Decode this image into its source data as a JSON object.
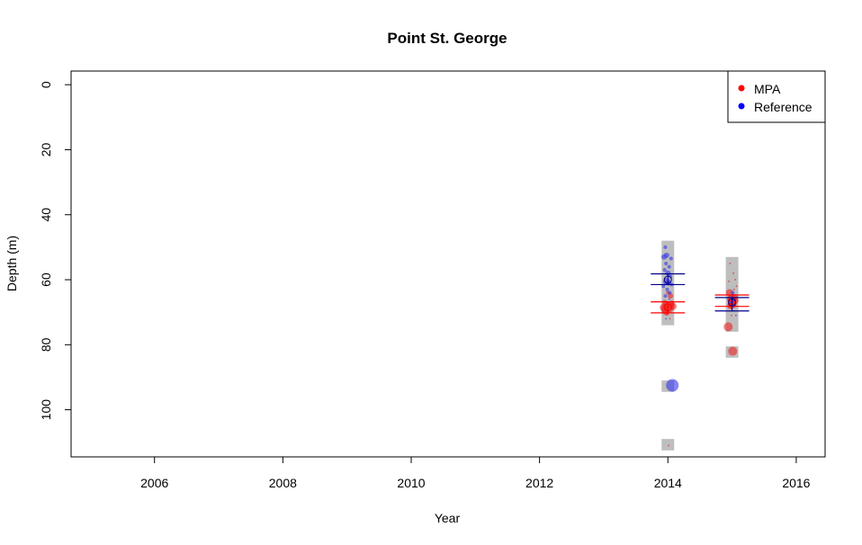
{
  "chart_data": {
    "type": "scatter",
    "title": "Point St. George",
    "xlabel": "Year",
    "ylabel": "Depth (m)",
    "xlim": [
      2004.7,
      2016.45
    ],
    "ylim": [
      114.5,
      -4.2
    ],
    "y_inverted": true,
    "x_ticks": [
      2006,
      2008,
      2010,
      2012,
      2014,
      2016
    ],
    "y_ticks": [
      0,
      20,
      40,
      60,
      80,
      100
    ],
    "grid": false,
    "legend": {
      "placement": "top-right",
      "entries": [
        {
          "label": "MPA",
          "color": "#ff0000"
        },
        {
          "label": "Reference",
          "color": "#0000ff"
        }
      ]
    },
    "colors": {
      "mpa_point": "#ee2222",
      "reference_point": "#3333ee",
      "range_bar": "#bebebe"
    },
    "range_bars": [
      {
        "year": 2014,
        "from": 48,
        "to": 74
      },
      {
        "year": 2014,
        "from": 91,
        "to": 94.5
      },
      {
        "year": 2014,
        "from": 109,
        "to": 112.5
      },
      {
        "year": 2015,
        "from": 53,
        "to": 76
      },
      {
        "year": 2015,
        "from": 80.5,
        "to": 84
      }
    ],
    "summary": [
      {
        "series": "MPA",
        "year": 2014,
        "mean": 68.5,
        "lower": 66.8,
        "upper": 70.2
      },
      {
        "series": "Reference",
        "year": 2014,
        "mean": 60.0,
        "lower": 58.2,
        "upper": 61.5
      },
      {
        "series": "MPA",
        "year": 2015,
        "mean": 66.5,
        "lower": 64.7,
        "upper": 68.2
      },
      {
        "series": "Reference",
        "year": 2015,
        "mean": 67.0,
        "lower": 65.5,
        "upper": 69.6
      }
    ],
    "series": [
      {
        "name": "MPA",
        "color": "#ee2222",
        "points": [
          {
            "x": 2013.93,
            "y": 68.5,
            "size": 4
          },
          {
            "x": 2013.96,
            "y": 69.0,
            "size": 5
          },
          {
            "x": 2013.98,
            "y": 68.0,
            "size": 4
          },
          {
            "x": 2014.02,
            "y": 68.7,
            "size": 5
          },
          {
            "x": 2014.05,
            "y": 67.8,
            "size": 4
          },
          {
            "x": 2013.95,
            "y": 67.0,
            "size": 3
          },
          {
            "x": 2014.08,
            "y": 68.2,
            "size": 4
          },
          {
            "x": 2014.0,
            "y": 64.0,
            "size": 2
          },
          {
            "x": 2014.04,
            "y": 65.0,
            "size": 3
          },
          {
            "x": 2013.97,
            "y": 69.8,
            "size": 4
          },
          {
            "x": 2014.06,
            "y": 67.2,
            "size": 3
          },
          {
            "x": 2013.99,
            "y": 70.5,
            "size": 2
          },
          {
            "x": 2014.01,
            "y": 111.0,
            "size": 1
          },
          {
            "x": 2014.03,
            "y": 72.0,
            "size": 1
          },
          {
            "x": 2014.96,
            "y": 64.0,
            "size": 4
          },
          {
            "x": 2014.99,
            "y": 66.0,
            "size": 5
          },
          {
            "x": 2015.02,
            "y": 67.0,
            "size": 4
          },
          {
            "x": 2015.04,
            "y": 65.5,
            "size": 4
          },
          {
            "x": 2014.98,
            "y": 68.0,
            "size": 4
          },
          {
            "x": 2015.06,
            "y": 66.5,
            "size": 3
          },
          {
            "x": 2015.0,
            "y": 67.5,
            "size": 5
          },
          {
            "x": 2014.94,
            "y": 74.5,
            "size": 5
          },
          {
            "x": 2015.01,
            "y": 82.0,
            "size": 5
          },
          {
            "x": 2014.97,
            "y": 55.0,
            "size": 1
          },
          {
            "x": 2015.05,
            "y": 60.0,
            "size": 1
          },
          {
            "x": 2015.03,
            "y": 63.0,
            "size": 1
          },
          {
            "x": 2015.07,
            "y": 62.0,
            "size": 1
          },
          {
            "x": 2014.99,
            "y": 71.0,
            "size": 1
          },
          {
            "x": 2015.02,
            "y": 58.0,
            "size": 1
          },
          {
            "x": 2014.95,
            "y": 60.5,
            "size": 1
          }
        ]
      },
      {
        "name": "Reference",
        "color": "#3333ee",
        "points": [
          {
            "x": 2013.96,
            "y": 50.0,
            "size": 2
          },
          {
            "x": 2013.98,
            "y": 52.5,
            "size": 3
          },
          {
            "x": 2013.94,
            "y": 53.0,
            "size": 3
          },
          {
            "x": 2014.05,
            "y": 53.5,
            "size": 2
          },
          {
            "x": 2013.97,
            "y": 55.0,
            "size": 2
          },
          {
            "x": 2014.02,
            "y": 56.0,
            "size": 2
          },
          {
            "x": 2013.95,
            "y": 57.0,
            "size": 2
          },
          {
            "x": 2014.0,
            "y": 58.0,
            "size": 3
          },
          {
            "x": 2014.04,
            "y": 59.0,
            "size": 2
          },
          {
            "x": 2013.98,
            "y": 60.5,
            "size": 4
          },
          {
            "x": 2014.01,
            "y": 61.0,
            "size": 3
          },
          {
            "x": 2013.93,
            "y": 62.0,
            "size": 2
          },
          {
            "x": 2014.06,
            "y": 61.5,
            "size": 2
          },
          {
            "x": 2013.99,
            "y": 63.0,
            "size": 2
          },
          {
            "x": 2014.03,
            "y": 64.0,
            "size": 2
          },
          {
            "x": 2013.96,
            "y": 65.0,
            "size": 2
          },
          {
            "x": 2014.02,
            "y": 66.0,
            "size": 1
          },
          {
            "x": 2013.97,
            "y": 72.0,
            "size": 1
          },
          {
            "x": 2014.07,
            "y": 92.5,
            "size": 7
          },
          {
            "x": 2015.01,
            "y": 64.0,
            "size": 2
          },
          {
            "x": 2014.98,
            "y": 65.5,
            "size": 1
          },
          {
            "x": 2015.03,
            "y": 66.0,
            "size": 2
          },
          {
            "x": 2014.99,
            "y": 67.0,
            "size": 2
          },
          {
            "x": 2015.05,
            "y": 68.0,
            "size": 1
          },
          {
            "x": 2015.0,
            "y": 69.5,
            "size": 1
          },
          {
            "x": 2015.06,
            "y": 71.0,
            "size": 1
          }
        ]
      }
    ]
  }
}
